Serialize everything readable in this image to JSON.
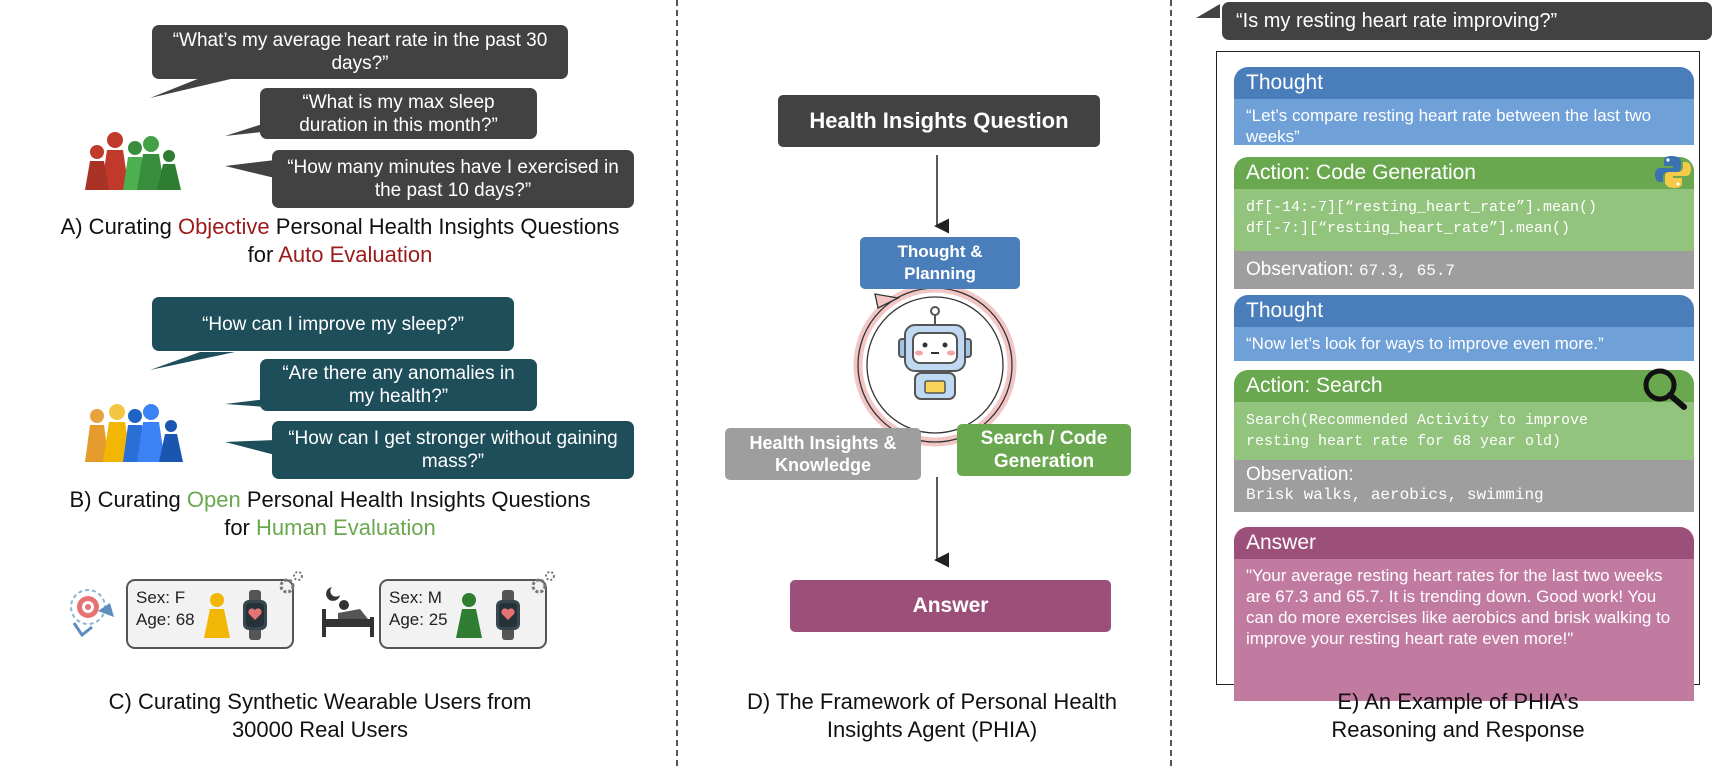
{
  "panel_a": {
    "questions": [
      "“What’s my average heart rate in the past 30 days?”",
      "“What is my max sleep duration in this month?”",
      "“How many minutes have I exercised in the past 10 days?”"
    ],
    "caption_pre": "A) Curating ",
    "caption_highlight1": "Objective",
    "caption_mid": " Personal Health Insights Questions",
    "caption_for": "for ",
    "caption_highlight2": "Auto Evaluation"
  },
  "panel_b": {
    "questions": [
      "“How can I improve my sleep?”",
      "“Are there any anomalies in my health?”",
      "“How can I get stronger without gaining mass?”"
    ],
    "caption_pre": "B) Curating ",
    "caption_highlight1": "Open",
    "caption_mid": " Personal Health Insights Questions",
    "caption_for": "for ",
    "caption_highlight2": "Human Evaluation"
  },
  "panel_c": {
    "users": [
      {
        "sex": "Sex: F",
        "age": "Age: 68"
      },
      {
        "sex": "Sex: M",
        "age": "Age: 25"
      }
    ],
    "caption_line1": "C) Curating Synthetic Wearable Users from",
    "caption_line2": "30000 Real Users"
  },
  "panel_d": {
    "question_box": "Health Insights Question",
    "thought_box": "Thought & Planning",
    "knowledge_box": "Health Insights & Knowledge",
    "search_box": "Search / Code Generation",
    "answer_box": "Answer",
    "caption_line1": "D) The Framework of Personal Health",
    "caption_line2": "Insights Agent (PHIA)"
  },
  "panel_e": {
    "user_question": "“Is my resting heart rate improving?”",
    "thought1_title": "Thought",
    "thought1_text": "“Let’s compare resting heart rate between the last two weeks”",
    "action1_title": "Action: Code Generation",
    "action1_code_line1": "df[-14:-7][“resting_heart_rate”].mean()",
    "action1_code_line2": "df[-7:][“resting_heart_rate”].mean()",
    "obs1_label": "Observation:",
    "obs1_value": "67.3, 65.7",
    "thought2_title": "Thought",
    "thought2_text": "“Now let’s look for ways to improve even more.”",
    "action2_title": "Action: Search",
    "action2_code_line1": "Search(Recommended Activity to improve",
    "action2_code_line2": "resting heart rate for 68 year old)",
    "obs2_label": "Observation:",
    "obs2_value": "Brisk walks, aerobics, swimming",
    "answer_title": "Answer",
    "answer_text": "\"Your average resting heart rates for the last two weeks are 67.3 and 65.7. It is trending down. Good work! You can do more exercises like aerobics and brisk walking to improve your resting heart rate even more!\"",
    "caption_line1": "E) An Example of PHIA’s",
    "caption_line2": "Reasoning and Response"
  },
  "colors": {
    "dark_bubble": "#424242",
    "teal_bubble": "#1f4e5b",
    "blue": "#4a7ebb",
    "green": "#6aa84f",
    "gray": "#9e9e9e",
    "purple": "#9c4f78",
    "red_text": "#9b1b1b"
  }
}
